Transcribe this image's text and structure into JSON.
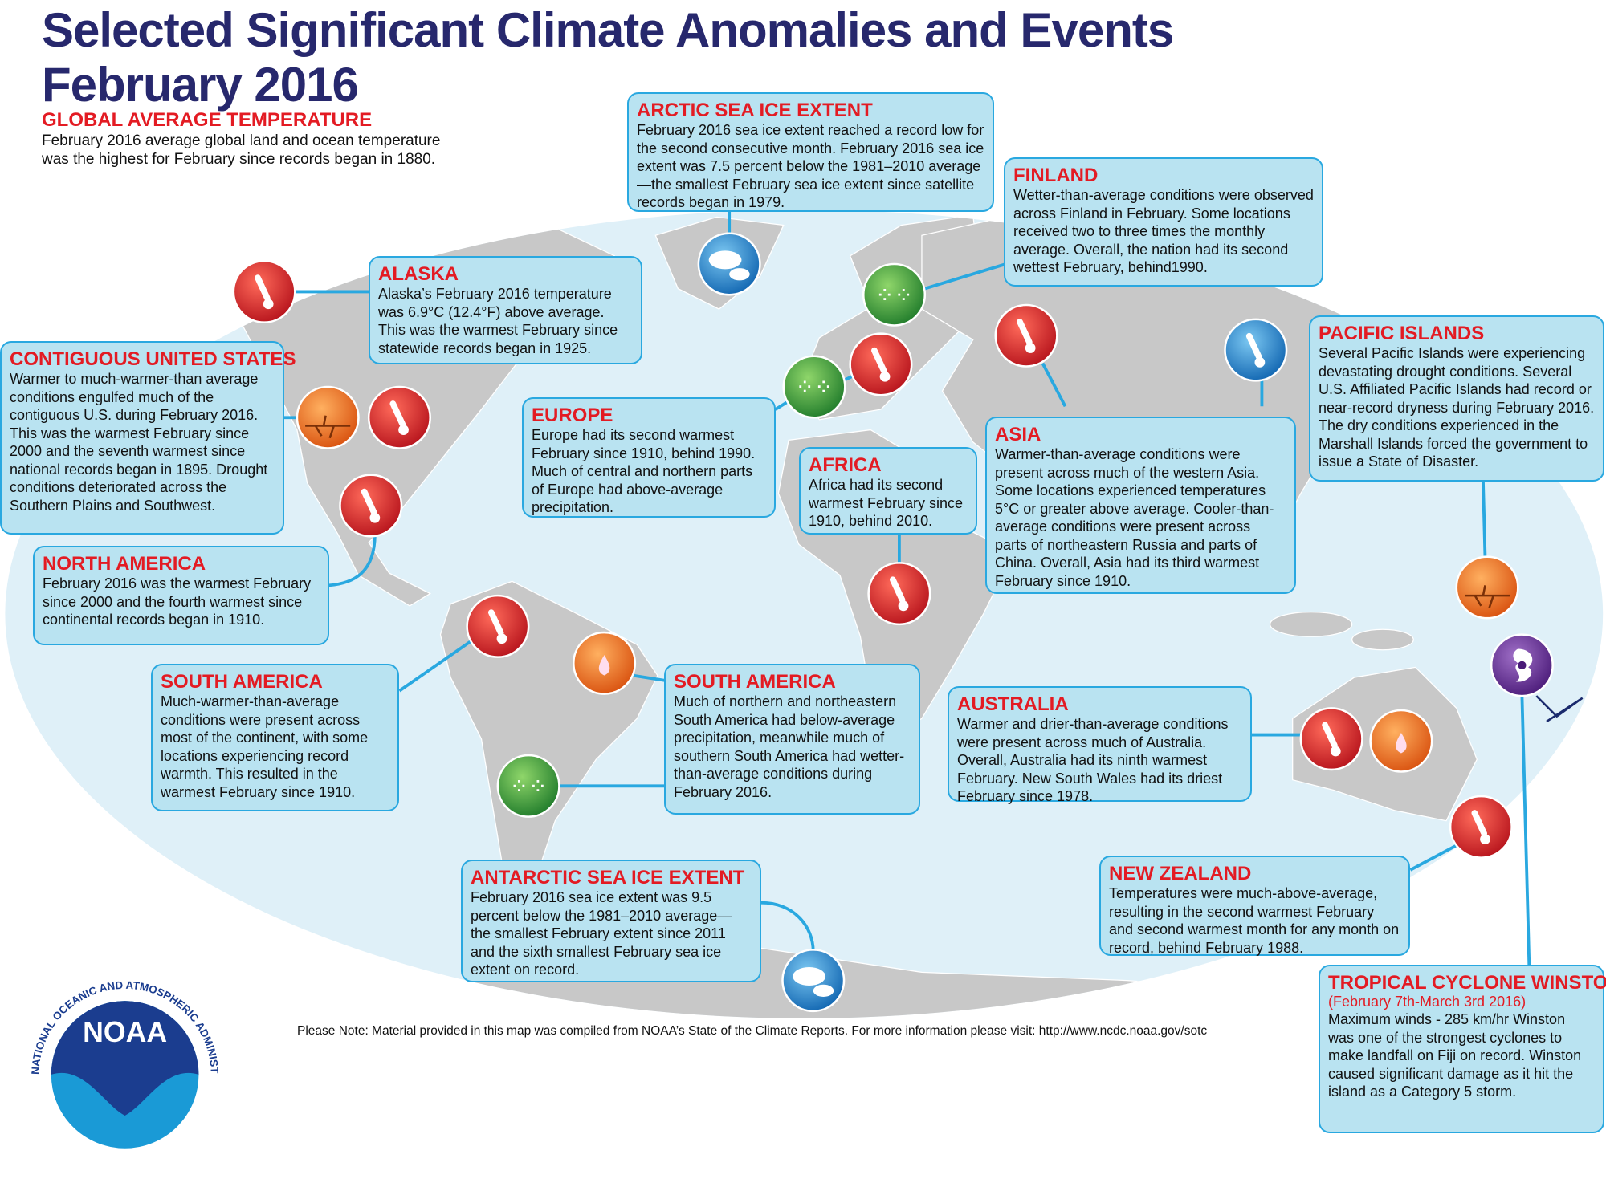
{
  "header": {
    "title_line1": "Selected Significant Climate Anomalies and Events",
    "title_line2": "February 2016"
  },
  "global": {
    "heading": "GLOBAL AVERAGE TEMPERATURE",
    "body": "February 2016 average global land and ocean temperature was the highest for February since records began in 1880."
  },
  "boxes": {
    "arctic": {
      "heading": "ARCTIC SEA ICE EXTENT",
      "body": "February 2016 sea ice extent reached a record low for the second consecutive month. February 2016 sea ice extent was 7.5 percent below the 1981–2010 average—the smallest February sea ice extent since satellite records began in 1979."
    },
    "finland": {
      "heading": "FINLAND",
      "body": "Wetter-than-average conditions were observed across Finland in February. Some locations received two to three times the monthly average. Overall, the nation had its second wettest February, behind1990."
    },
    "alaska": {
      "heading": "ALASKA",
      "body": "Alaska’s February 2016 temperature was 6.9°C (12.4°F) above average. This was the warmest February since statewide records began in 1925."
    },
    "us": {
      "heading": "CONTIGUOUS UNITED STATES",
      "body": "Warmer to much-warmer-than average conditions engulfed much of the contiguous U.S. during February 2016. This was the warmest February since 2000 and the seventh warmest since national records began in 1895. Drought conditions deteriorated across the Southern Plains and Southwest."
    },
    "europe": {
      "heading": "EUROPE",
      "body": "Europe had its second warmest February since 1910, behind 1990. Much of central and northern parts of Europe had above-average precipitation."
    },
    "africa": {
      "heading": "AFRICA",
      "body": "Africa had its second warmest February since 1910, behind 2010."
    },
    "asia": {
      "heading": "ASIA",
      "body": "Warmer-than-average conditions were present across much of the western Asia. Some locations experienced temperatures 5°C or greater above average. Cooler-than-average conditions were present across parts of northeastern Russia and parts of China. Overall, Asia had its third warmest February since 1910."
    },
    "pacific": {
      "heading": "PACIFIC ISLANDS",
      "body": "Several Pacific Islands were experiencing devastating drought conditions. Several U.S. Affiliated Pacific Islands had record or near-record dryness during February 2016. The dry conditions experienced in the Marshall Islands forced the government to issue a State of Disaster."
    },
    "north_america": {
      "heading": "NORTH AMERICA",
      "body": "February 2016 was the warmest February since 2000 and the fourth warmest since continental records began in 1910."
    },
    "south_america_temp": {
      "heading": "SOUTH AMERICA",
      "body": "Much-warmer-than-average conditions were present across most of the continent, with some locations experiencing record warmth. This resulted in the warmest February since 1910."
    },
    "south_america_precip": {
      "heading": "SOUTH AMERICA",
      "body": "Much of northern and northeastern South America had below-average precipitation, meanwhile much of southern South America had wetter-than-average conditions during February 2016."
    },
    "australia": {
      "heading": "AUSTRALIA",
      "body": "Warmer and drier-than-average conditions were present across much of Australia. Overall, Australia had its ninth warmest February. New South Wales had its driest February since 1978."
    },
    "new_zealand": {
      "heading": "NEW ZEALAND",
      "body": "Temperatures were much-above-average, resulting in the second warmest February and second warmest month for any month on record, behind February 1988."
    },
    "antarctic": {
      "heading": "ANTARCTIC SEA ICE EXTENT",
      "body": "February 2016 sea ice extent was 9.5 percent below the 1981–2010 average—the smallest February extent since 2011 and the sixth smallest February sea ice extent on record."
    },
    "cyclone": {
      "heading": "TROPICAL CYCLONE WINSTON",
      "dates": "(February 7th-March 3rd 2016)",
      "body": "Maximum winds - 285 km/hr Winston was one of the strongest cyclones to make landfall on Fiji on record. Winston caused significant damage as it hit the island as a Category 5 storm."
    }
  },
  "note": "Please Note: Material provided in this map was compiled from NOAA’s State of the Climate Reports. For more information please visit: http://www.ncdc.noaa.gov/sotc",
  "logo": {
    "text": "NOAA",
    "ring_text": "NATIONAL OCEANIC AND ATMOSPHERIC ADMINISTRATION · U.S. DEPARTMENT OF COMMERCE"
  },
  "icons": [
    "warm-thermometer-icon",
    "cool-thermometer-icon",
    "sea-ice-icon",
    "wet-rain-icon",
    "dry-drop-icon",
    "drought-cracked-icon",
    "tropical-cyclone-icon"
  ],
  "colors": {
    "title": "#27286d",
    "heading": "#e31b23",
    "box_fill": "#b9e3f1",
    "box_border": "#29a8e0",
    "ocean": "#dff0f8",
    "land": "#c8c8c8",
    "warm": "#d9232a",
    "cool": "#1e88d2",
    "wet": "#3aa842",
    "dry": "#f07020",
    "cyclone": "#6a2c91"
  }
}
